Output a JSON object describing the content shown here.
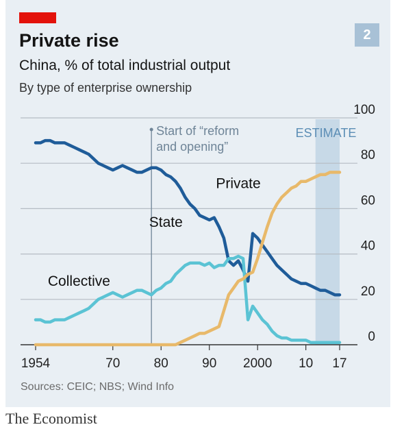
{
  "header": {
    "chart_number": "2",
    "title": "Private rise",
    "subtitle": "China, % of total industrial output",
    "subtitle2": "By type of enterprise ownership"
  },
  "footer": {
    "source": "Sources: CEIC; NBS; Wind Info",
    "publisher": "The Economist"
  },
  "colors": {
    "state": "#1f5c99",
    "collective": "#5bc3d4",
    "private": "#e8b96a",
    "grid": "#b5bcc4",
    "estimate_band": "#c1d5e4"
  },
  "chart_data": {
    "type": "line",
    "title": "Private rise",
    "xlim": [
      1954,
      2017
    ],
    "ylim": [
      0,
      100
    ],
    "x_ticks": [
      {
        "value": 1954,
        "label": "1954"
      },
      {
        "value": 1970,
        "label": "70"
      },
      {
        "value": 1980,
        "label": "80"
      },
      {
        "value": 1990,
        "label": "90"
      },
      {
        "value": 2000,
        "label": "2000"
      },
      {
        "value": 2010,
        "label": "10"
      },
      {
        "value": 2017,
        "label": "17"
      }
    ],
    "y_ticks": [
      0,
      20,
      40,
      60,
      80,
      100
    ],
    "grid": true,
    "y_axis_side": "right",
    "estimate": {
      "label": "ESTIMATE",
      "from": 2012,
      "to": 2017
    },
    "annotation": {
      "year": 1978,
      "text_line1": "Start of “reform",
      "text_line2": "and opening”"
    },
    "series": [
      {
        "name": "State",
        "color_key": "state",
        "points": [
          [
            1954,
            89
          ],
          [
            1955,
            89
          ],
          [
            1956,
            90
          ],
          [
            1957,
            90
          ],
          [
            1958,
            89
          ],
          [
            1959,
            89
          ],
          [
            1960,
            89
          ],
          [
            1961,
            88
          ],
          [
            1962,
            87
          ],
          [
            1963,
            86
          ],
          [
            1964,
            85
          ],
          [
            1965,
            84
          ],
          [
            1966,
            82
          ],
          [
            1967,
            80
          ],
          [
            1968,
            79
          ],
          [
            1969,
            78
          ],
          [
            1970,
            77
          ],
          [
            1971,
            78
          ],
          [
            1972,
            79
          ],
          [
            1973,
            78
          ],
          [
            1974,
            77
          ],
          [
            1975,
            76
          ],
          [
            1976,
            76
          ],
          [
            1977,
            77
          ],
          [
            1978,
            78
          ],
          [
            1979,
            78
          ],
          [
            1980,
            77
          ],
          [
            1981,
            75
          ],
          [
            1982,
            74
          ],
          [
            1983,
            72
          ],
          [
            1984,
            69
          ],
          [
            1985,
            65
          ],
          [
            1986,
            62
          ],
          [
            1987,
            60
          ],
          [
            1988,
            57
          ],
          [
            1989,
            56
          ],
          [
            1990,
            55
          ],
          [
            1991,
            56
          ],
          [
            1992,
            52
          ],
          [
            1993,
            47
          ],
          [
            1994,
            37
          ],
          [
            1995,
            35
          ],
          [
            1996,
            37
          ],
          [
            1997,
            33
          ],
          [
            1998,
            28
          ],
          [
            1999,
            49
          ],
          [
            2000,
            47
          ],
          [
            2001,
            44
          ],
          [
            2002,
            41
          ],
          [
            2003,
            38
          ],
          [
            2004,
            35
          ],
          [
            2005,
            33
          ],
          [
            2006,
            31
          ],
          [
            2007,
            29
          ],
          [
            2008,
            28
          ],
          [
            2009,
            27
          ],
          [
            2010,
            27
          ],
          [
            2011,
            26
          ],
          [
            2012,
            25
          ],
          [
            2013,
            24
          ],
          [
            2014,
            24
          ],
          [
            2015,
            23
          ],
          [
            2016,
            22
          ],
          [
            2017,
            22
          ]
        ]
      },
      {
        "name": "Collective",
        "color_key": "collective",
        "points": [
          [
            1954,
            11
          ],
          [
            1955,
            11
          ],
          [
            1956,
            10
          ],
          [
            1957,
            10
          ],
          [
            1958,
            11
          ],
          [
            1959,
            11
          ],
          [
            1960,
            11
          ],
          [
            1961,
            12
          ],
          [
            1962,
            13
          ],
          [
            1963,
            14
          ],
          [
            1964,
            15
          ],
          [
            1965,
            16
          ],
          [
            1966,
            18
          ],
          [
            1967,
            20
          ],
          [
            1968,
            21
          ],
          [
            1969,
            22
          ],
          [
            1970,
            23
          ],
          [
            1971,
            22
          ],
          [
            1972,
            21
          ],
          [
            1973,
            22
          ],
          [
            1974,
            23
          ],
          [
            1975,
            24
          ],
          [
            1976,
            24
          ],
          [
            1977,
            23
          ],
          [
            1978,
            22
          ],
          [
            1979,
            24
          ],
          [
            1980,
            25
          ],
          [
            1981,
            27
          ],
          [
            1982,
            28
          ],
          [
            1983,
            31
          ],
          [
            1984,
            33
          ],
          [
            1985,
            35
          ],
          [
            1986,
            36
          ],
          [
            1987,
            36
          ],
          [
            1988,
            36
          ],
          [
            1989,
            35
          ],
          [
            1990,
            36
          ],
          [
            1991,
            34
          ],
          [
            1992,
            35
          ],
          [
            1993,
            35
          ],
          [
            1994,
            38
          ],
          [
            1995,
            38
          ],
          [
            1996,
            39
          ],
          [
            1997,
            38
          ],
          [
            1998,
            11
          ],
          [
            1999,
            17
          ],
          [
            2000,
            14
          ],
          [
            2001,
            11
          ],
          [
            2002,
            9
          ],
          [
            2003,
            6
          ],
          [
            2004,
            4
          ],
          [
            2005,
            3
          ],
          [
            2006,
            3
          ],
          [
            2007,
            2
          ],
          [
            2008,
            2
          ],
          [
            2009,
            2
          ],
          [
            2010,
            2
          ],
          [
            2011,
            1
          ],
          [
            2012,
            1
          ],
          [
            2013,
            1
          ],
          [
            2014,
            1
          ],
          [
            2015,
            1
          ],
          [
            2016,
            1
          ],
          [
            2017,
            1
          ]
        ]
      },
      {
        "name": "Private",
        "color_key": "private",
        "points": [
          [
            1954,
            0
          ],
          [
            1960,
            0
          ],
          [
            1965,
            0
          ],
          [
            1970,
            0
          ],
          [
            1975,
            0
          ],
          [
            1978,
            0
          ],
          [
            1979,
            0
          ],
          [
            1980,
            0
          ],
          [
            1981,
            0
          ],
          [
            1982,
            0
          ],
          [
            1983,
            0
          ],
          [
            1984,
            1
          ],
          [
            1985,
            2
          ],
          [
            1986,
            3
          ],
          [
            1987,
            4
          ],
          [
            1988,
            5
          ],
          [
            1989,
            5
          ],
          [
            1990,
            6
          ],
          [
            1991,
            7
          ],
          [
            1992,
            8
          ],
          [
            1993,
            15
          ],
          [
            1994,
            22
          ],
          [
            1995,
            25
          ],
          [
            1996,
            28
          ],
          [
            1997,
            29
          ],
          [
            1998,
            31
          ],
          [
            1999,
            32
          ],
          [
            2000,
            38
          ],
          [
            2001,
            45
          ],
          [
            2002,
            52
          ],
          [
            2003,
            58
          ],
          [
            2004,
            62
          ],
          [
            2005,
            65
          ],
          [
            2006,
            67
          ],
          [
            2007,
            69
          ],
          [
            2008,
            70
          ],
          [
            2009,
            72
          ],
          [
            2010,
            72
          ],
          [
            2011,
            73
          ],
          [
            2012,
            74
          ],
          [
            2013,
            75
          ],
          [
            2014,
            75
          ],
          [
            2015,
            76
          ],
          [
            2016,
            76
          ],
          [
            2017,
            76
          ]
        ]
      }
    ],
    "series_labels": [
      {
        "name": "State",
        "text": "State",
        "anchor": [
          1981,
          52
        ]
      },
      {
        "name": "Collective",
        "text": "Collective",
        "anchor": [
          1963,
          26
        ]
      },
      {
        "name": "Private",
        "text": "Private",
        "anchor": [
          1996,
          69
        ]
      }
    ]
  }
}
